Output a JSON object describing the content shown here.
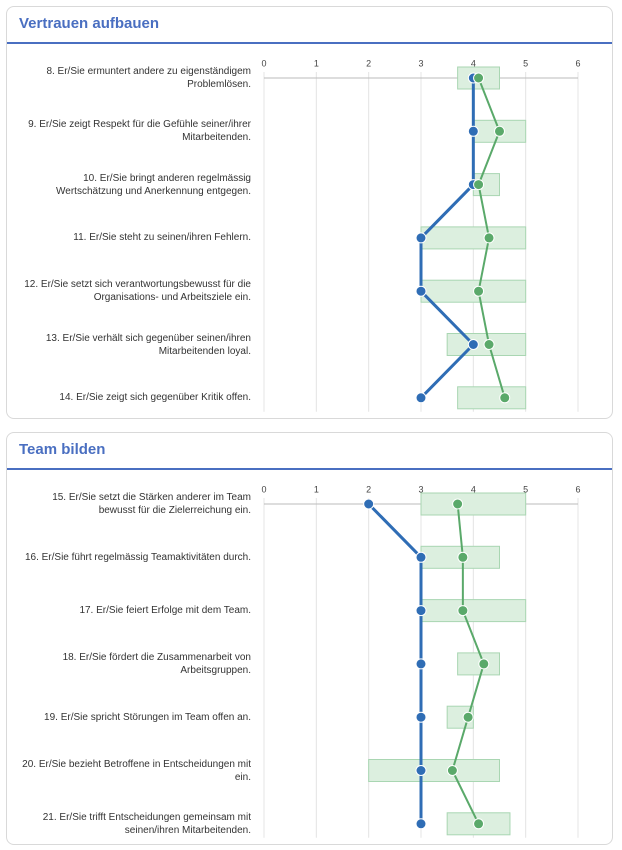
{
  "chart_data": [
    {
      "type": "dot-range",
      "title": "Vertrauen aufbauen",
      "categories": [
        "8. Er/Sie ermuntert andere zu eigenständigem Problemlösen.",
        "9. Er/Sie zeigt Respekt für die Gefühle seiner/ihrer Mitarbeitenden.",
        "10. Er/Sie bringt anderen regelmässig Wertschätzung und Anerkennung entgegen.",
        "11. Er/Sie steht zu seinen/ihren Fehlern.",
        "12. Er/Sie setzt sich verantwortungsbewusst für die Organisations- und Arbeitsziele ein.",
        "13. Er/Sie verhält sich gegenüber seinen/ihren Mitarbeitenden loyal.",
        "14. Er/Sie zeigt sich gegenüber Kritik offen."
      ],
      "series": [
        {
          "color": "#2f6db5",
          "values": [
            4,
            4,
            4,
            3,
            3,
            4,
            3
          ]
        },
        {
          "color": "#5aa96a",
          "values": [
            4.1,
            4.5,
            4.1,
            4.3,
            4.1,
            4.3,
            4.6
          ]
        }
      ],
      "ranges": {
        "color": "#dcefdf",
        "low": [
          3.7,
          4,
          4,
          3,
          3,
          3.5,
          3.7
        ],
        "high": [
          4.5,
          5,
          4.5,
          5,
          5,
          5,
          5
        ]
      },
      "xlim": [
        0,
        6
      ],
      "xticks": [
        0,
        1,
        2,
        3,
        4,
        5,
        6
      ],
      "grid": true
    },
    {
      "type": "dot-range",
      "title": "Team bilden",
      "categories": [
        "15. Er/Sie setzt die Stärken anderer im Team bewusst für die Zielerreichung ein.",
        "16. Er/Sie führt regelmässig Teamaktivitäten durch.",
        "17. Er/Sie feiert Erfolge mit dem Team.",
        "18. Er/Sie fördert die Zusammenarbeit von Arbeitsgruppen.",
        "19. Er/Sie spricht Störungen im Team offen an.",
        "20. Er/Sie bezieht Betroffene in Entscheidungen mit ein.",
        "21. Er/Sie trifft Entscheidungen gemeinsam mit seinen/ihren Mitarbeitenden."
      ],
      "series": [
        {
          "color": "#2f6db5",
          "values": [
            2,
            3,
            3,
            3,
            3,
            3,
            3
          ]
        },
        {
          "color": "#5aa96a",
          "values": [
            3.7,
            3.8,
            3.8,
            4.2,
            3.9,
            3.6,
            4.1
          ]
        }
      ],
      "ranges": {
        "color": "#dcefdf",
        "low": [
          3,
          3,
          3,
          3.7,
          3.5,
          2,
          3.5
        ],
        "high": [
          5,
          4.5,
          5,
          4.5,
          4,
          4.5,
          4.7
        ]
      },
      "xlim": [
        0,
        6
      ],
      "xticks": [
        0,
        1,
        2,
        3,
        4,
        5,
        6
      ],
      "grid": true
    }
  ]
}
